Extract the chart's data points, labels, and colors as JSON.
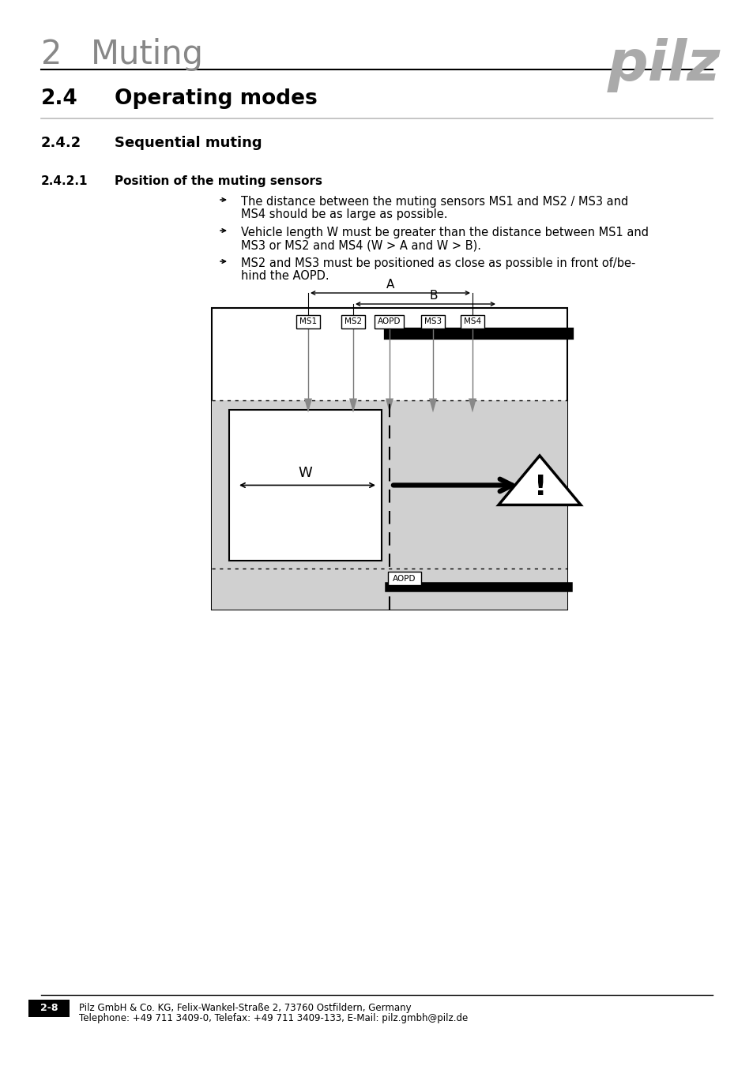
{
  "page_title_num": "2",
  "page_title_text": "Muting",
  "section": "2.4",
  "section_text": "Operating modes",
  "subsection": "2.4.2",
  "subsection_text": "Sequential muting",
  "subsubsection": "2.4.2.1",
  "subsubsection_text": "Position of the muting sensors",
  "bullet1_line1": "The distance between the muting sensors MS1 and MS2 / MS3 and",
  "bullet1_line2": "MS4 should be as large as possible.",
  "bullet2_line1": "Vehicle length W must be greater than the distance between MS1 and",
  "bullet2_line2": "MS3 or MS2 and MS4 (W > A and W > B).",
  "bullet3_line1": "MS2 and MS3 must be positioned as close as possible in front of/be-",
  "bullet3_line2": "hind the AOPD.",
  "footer_line1": "Pilz GmbH & Co. KG, Felix-Wankel-Straße 2, 73760 Ostfildern, Germany",
  "footer_line2": "Telephone: +49 711 3409-0, Telefax: +49 711 3409-133, E-Mail: pilz.gmbh@pilz.de",
  "page_num": "2-8",
  "bg_color": "#ffffff",
  "diag_gray": "#d0d0d0",
  "pilz_gray": "#aaaaaa",
  "header_gray": "#888888"
}
